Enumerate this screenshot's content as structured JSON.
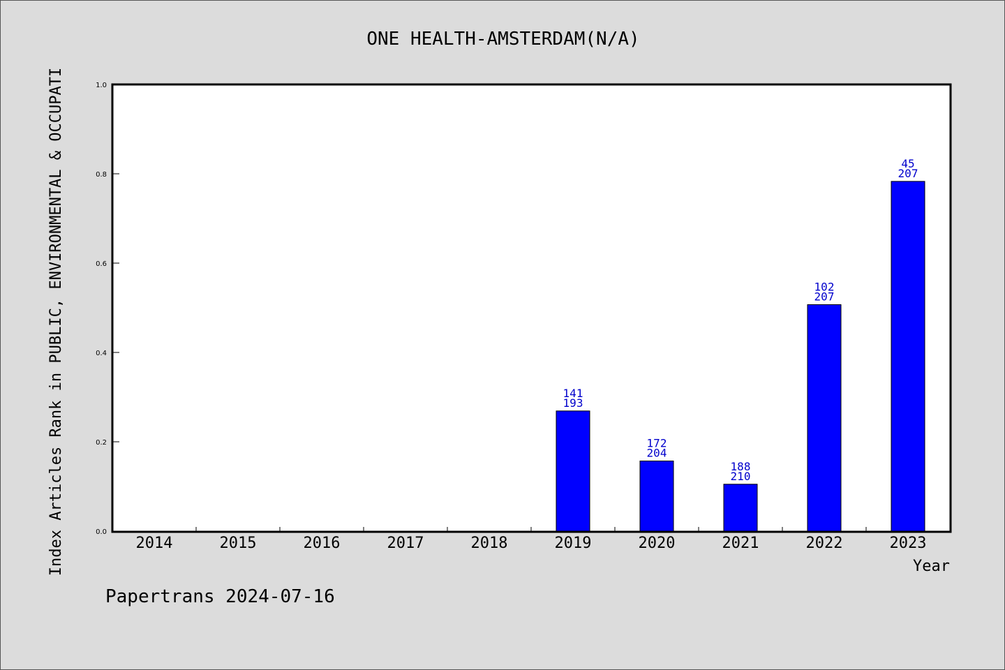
{
  "chart_data": {
    "type": "bar",
    "title": "ONE HEALTH-AMSTERDAM(N/A)",
    "xlabel": "Year",
    "ylabel": "Index Articles Rank in PUBLIC, ENVIRONMENTAL & OCCUPATI",
    "ylim": [
      0,
      1.0
    ],
    "yticks": [
      "0.0",
      "0.2",
      "0.4",
      "0.6",
      "0.8",
      "1.0"
    ],
    "categories": [
      "2014",
      "2015",
      "2016",
      "2017",
      "2018",
      "2019",
      "2020",
      "2021",
      "2022",
      "2023"
    ],
    "values": [
      null,
      null,
      null,
      null,
      null,
      0.269,
      0.157,
      0.105,
      0.507,
      0.783
    ],
    "labels_top": [
      "",
      "",
      "",
      "",
      "",
      "141",
      "172",
      "188",
      "102",
      "45"
    ],
    "labels_bottom": [
      "",
      "",
      "",
      "",
      "",
      "193",
      "204",
      "210",
      "207",
      "207"
    ],
    "grid": false,
    "colors": {
      "bar": "#0000ff",
      "label": "#0000cc",
      "background": "#dcdcdc",
      "plot": "#ffffff"
    }
  },
  "footer": "Papertrans 2024-07-16"
}
